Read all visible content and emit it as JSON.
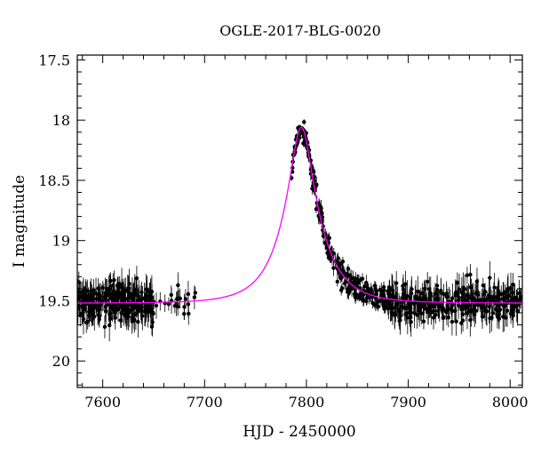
{
  "chart_data": {
    "type": "scatter",
    "title": "OGLE-2017-BLG-0020",
    "xlabel": "HJD - 2450000",
    "ylabel": "I magnitude",
    "xlim": [
      7575,
      8012
    ],
    "ylim": [
      20.22,
      17.46
    ],
    "y_inverted": true,
    "x_ticks": [
      7600,
      7700,
      7800,
      7900,
      8000
    ],
    "x_tick_labels": [
      "7600",
      "7700",
      "7800",
      "7900",
      "8000"
    ],
    "y_ticks": [
      17.5,
      18,
      18.5,
      19,
      19.5,
      20
    ],
    "y_tick_labels": [
      "17.5",
      "18",
      "18.5",
      "19",
      "19.5",
      "20"
    ],
    "grid": false,
    "legend": "none",
    "colors": {
      "data": "#000000",
      "model": "#ff00ff"
    },
    "series": [
      {
        "kind": "points_with_errorbars",
        "segments": [
          {
            "x_range": [
              7575,
              7650
            ],
            "count": 260,
            "baseline": 19.52,
            "scatter": 0.17,
            "error": 0.1
          },
          {
            "x_range": [
              7650,
              7695
            ],
            "count": 22,
            "baseline": 19.5,
            "scatter": 0.12,
            "error": 0.08
          },
          {
            "x_range": [
              7785,
              7800
            ],
            "count": 45,
            "follow_model": true,
            "scatter": 0.08,
            "error": 0.03
          },
          {
            "x_range": [
              7800,
              7880
            ],
            "count": 220,
            "follow_model": true,
            "scatter": 0.1,
            "error": 0.05
          },
          {
            "x_range": [
              7880,
              8012
            ],
            "count": 320,
            "baseline": 19.52,
            "scatter": 0.15,
            "error": 0.1
          }
        ]
      },
      {
        "kind": "model_curve",
        "t0": 7795,
        "u0": 0.29,
        "tE": 34,
        "baseline_mag": 19.52,
        "peak_mag": 18.06
      }
    ]
  }
}
